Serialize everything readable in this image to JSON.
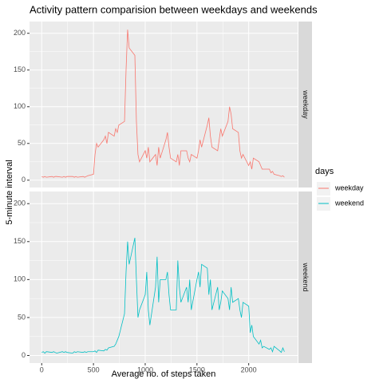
{
  "chart_data": {
    "type": "line",
    "title": "Activity pattern comparision between weekdays and weekends",
    "x_label": "Average no. of steps taken",
    "y_label": "5-minute interval",
    "legend_title": "days",
    "x": [
      0,
      15,
      30,
      45,
      100,
      115,
      130,
      145,
      200,
      215,
      230,
      245,
      300,
      315,
      330,
      345,
      400,
      415,
      430,
      445,
      500,
      515,
      530,
      545,
      600,
      615,
      630,
      645,
      700,
      715,
      730,
      745,
      800,
      815,
      830,
      845,
      900,
      915,
      930,
      945,
      1000,
      1015,
      1030,
      1045,
      1100,
      1115,
      1130,
      1145,
      1200,
      1215,
      1230,
      1245,
      1300,
      1315,
      1330,
      1345,
      1400,
      1415,
      1430,
      1445,
      1500,
      1515,
      1530,
      1545,
      1600,
      1615,
      1630,
      1645,
      1700,
      1715,
      1730,
      1745,
      1800,
      1815,
      1830,
      1845,
      1900,
      1915,
      1930,
      1945,
      2000,
      2015,
      2030,
      2045,
      2100,
      2115,
      2130,
      2145,
      2200,
      2215,
      2230,
      2245,
      2300,
      2315,
      2330,
      2345
    ],
    "series": [
      {
        "name": "weekday",
        "color": "#F8766D",
        "values": [
          5,
          4,
          5,
          4,
          5,
          4,
          5,
          5,
          4,
          5,
          4,
          5,
          5,
          4,
          5,
          4,
          5,
          4,
          5,
          6,
          8,
          35,
          50,
          45,
          55,
          60,
          50,
          65,
          60,
          70,
          65,
          75,
          80,
          150,
          205,
          180,
          170,
          80,
          35,
          25,
          40,
          30,
          45,
          25,
          35,
          20,
          45,
          30,
          55,
          65,
          45,
          30,
          25,
          35,
          20,
          40,
          40,
          30,
          25,
          35,
          30,
          40,
          55,
          45,
          75,
          85,
          60,
          45,
          40,
          55,
          70,
          60,
          80,
          100,
          90,
          70,
          65,
          40,
          30,
          35,
          20,
          25,
          15,
          30,
          25,
          20,
          15,
          15,
          15,
          10,
          12,
          8,
          6,
          5,
          6,
          4
        ]
      },
      {
        "name": "weekend",
        "color": "#00BFC4",
        "values": [
          4,
          5,
          3,
          5,
          4,
          5,
          4,
          3,
          5,
          4,
          5,
          4,
          3,
          5,
          4,
          5,
          4,
          5,
          4,
          5,
          5,
          6,
          4,
          7,
          6,
          8,
          7,
          10,
          12,
          15,
          20,
          25,
          55,
          110,
          150,
          120,
          155,
          100,
          50,
          60,
          80,
          110,
          60,
          40,
          90,
          130,
          70,
          100,
          100,
          110,
          80,
          60,
          60,
          125,
          90,
          70,
          90,
          70,
          100,
          60,
          100,
          110,
          90,
          120,
          115,
          80,
          100,
          60,
          90,
          60,
          70,
          85,
          75,
          60,
          90,
          70,
          75,
          60,
          50,
          70,
          65,
          30,
          40,
          25,
          15,
          20,
          10,
          12,
          8,
          10,
          5,
          12,
          6,
          4,
          10,
          5
        ]
      }
    ],
    "xlim": [
      -117.75,
      2472.75
    ],
    "ylim": [
      -10,
      216
    ],
    "xticks": [
      0,
      500,
      1000,
      1500,
      2000
    ],
    "yticks": [
      0,
      50,
      100,
      150,
      200
    ],
    "grid": true
  }
}
